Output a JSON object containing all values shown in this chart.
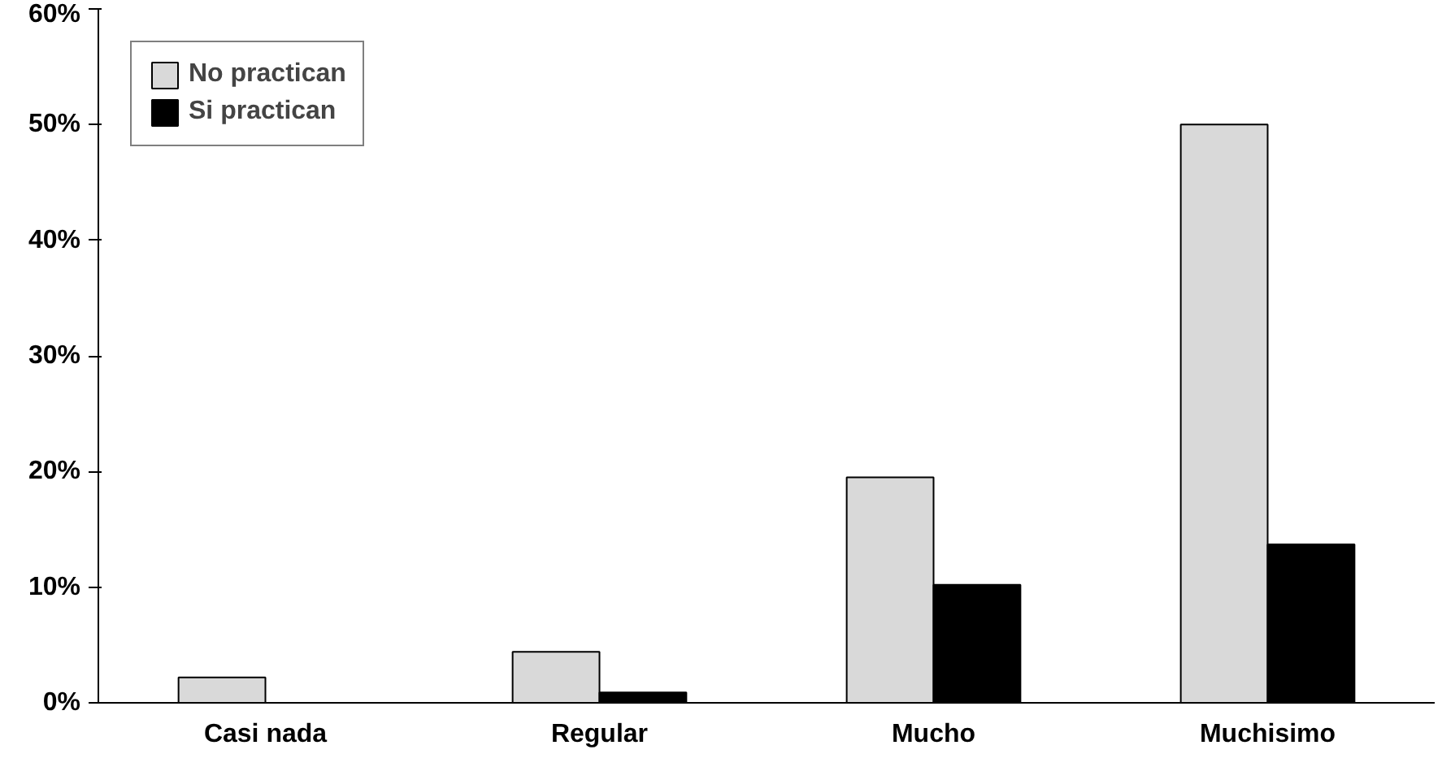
{
  "chart_data": {
    "type": "bar",
    "categories": [
      "Casi nada",
      "Regular",
      "Mucho",
      "Muchisimo"
    ],
    "series": [
      {
        "name": "No practican",
        "color": "#d9d9d9",
        "values": [
          2.2,
          4.4,
          19.5,
          50
        ]
      },
      {
        "name": "Si practican",
        "color": "#000000",
        "values": [
          0,
          0.9,
          10.2,
          13.7
        ]
      }
    ],
    "ylim": [
      0,
      60
    ],
    "yticks": [
      {
        "value": 0,
        "label": "0%"
      },
      {
        "value": 10,
        "label": "10%"
      },
      {
        "value": 20,
        "label": "20%"
      },
      {
        "value": 30,
        "label": "30%"
      },
      {
        "value": 40,
        "label": "40%"
      },
      {
        "value": 50,
        "label": "50%"
      },
      {
        "value": 60,
        "label": "60%"
      }
    ],
    "grid": false,
    "legend": "top left"
  }
}
